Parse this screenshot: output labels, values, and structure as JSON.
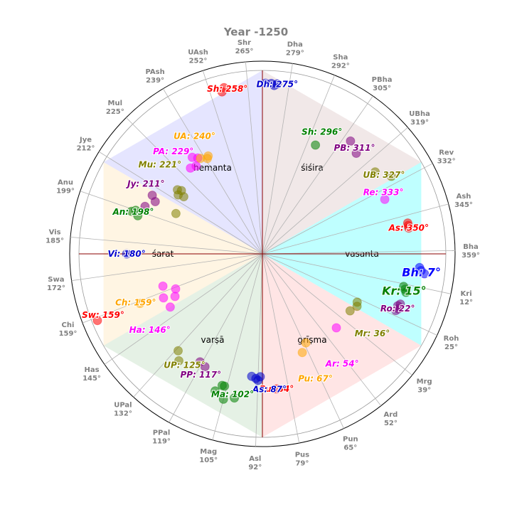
{
  "chart_data": {
    "type": "scatter",
    "subtype": "polar",
    "title": "Year -1250",
    "angular_unit": "degrees",
    "direction": "clockwise",
    "zero_direction": "east",
    "nakshatras": [
      {
        "name": "Bha",
        "deg": 359
      },
      {
        "name": "Kri",
        "deg": 12
      },
      {
        "name": "Roh",
        "deg": 25
      },
      {
        "name": "Mrg",
        "deg": 39
      },
      {
        "name": "Ard",
        "deg": 52
      },
      {
        "name": "Pun",
        "deg": 65
      },
      {
        "name": "Pus",
        "deg": 79
      },
      {
        "name": "Asl",
        "deg": 92
      },
      {
        "name": "Mag",
        "deg": 105
      },
      {
        "name": "PPal",
        "deg": 119
      },
      {
        "name": "UPal",
        "deg": 132
      },
      {
        "name": "Has",
        "deg": 145
      },
      {
        "name": "Chi",
        "deg": 159
      },
      {
        "name": "Swa",
        "deg": 172
      },
      {
        "name": "Vis",
        "deg": 185
      },
      {
        "name": "Anu",
        "deg": 199
      },
      {
        "name": "Jye",
        "deg": 212
      },
      {
        "name": "Mul",
        "deg": 225
      },
      {
        "name": "PAsh",
        "deg": 239
      },
      {
        "name": "UAsh",
        "deg": 252
      },
      {
        "name": "Shr",
        "deg": 265
      },
      {
        "name": "Dha",
        "deg": 279
      },
      {
        "name": "Sha",
        "deg": 292
      },
      {
        "name": "PBha",
        "deg": 305
      },
      {
        "name": "UBha",
        "deg": 319
      },
      {
        "name": "Rev",
        "deg": 332
      },
      {
        "name": "Ash",
        "deg": 345
      }
    ],
    "seasons": [
      {
        "name": "vasanta",
        "from": -30,
        "to": 30,
        "color": "#00ffff"
      },
      {
        "name": "grīṣma",
        "from": 30,
        "to": 90,
        "color": "#ff9999"
      },
      {
        "name": "varṣā",
        "from": 90,
        "to": 150,
        "color": "#99c799"
      },
      {
        "name": "śarat",
        "from": 150,
        "to": 210,
        "color": "#ffd68f"
      },
      {
        "name": "hemanta",
        "from": 210,
        "to": 270,
        "color": "#9999ff"
      },
      {
        "name": "śiśira",
        "from": 270,
        "to": 330,
        "color": "#c9a3a3"
      }
    ],
    "reference_lines": [
      0,
      90,
      180,
      270
    ],
    "series": [
      {
        "label": "Bh",
        "value": 7,
        "text": "Bh: 7°",
        "color": "#0000ff",
        "points": [
          {
            "deg": 5,
            "r": 0.86
          },
          {
            "deg": 6,
            "r": 0.87
          },
          {
            "deg": 7,
            "r": 0.89
          }
        ]
      },
      {
        "label": "Kr",
        "value": 15,
        "text": "Kr: 15°",
        "color": "#008000",
        "points": [
          {
            "deg": 13,
            "r": 0.79
          },
          {
            "deg": 14,
            "r": 0.8
          },
          {
            "deg": 15,
            "r": 0.81
          }
        ]
      },
      {
        "label": "Ro",
        "value": 22,
        "text": "Ro: 22°",
        "color": "#800080",
        "points": [
          {
            "deg": 20,
            "r": 0.8
          },
          {
            "deg": 21,
            "r": 0.79
          },
          {
            "deg": 22,
            "r": 0.8
          },
          {
            "deg": 23,
            "r": 0.79
          }
        ]
      },
      {
        "label": "Mr",
        "value": 36,
        "text": "Mr: 36°",
        "color": "#808000",
        "points": [
          {
            "deg": 27,
            "r": 0.58
          },
          {
            "deg": 29,
            "r": 0.59
          },
          {
            "deg": 33,
            "r": 0.57
          }
        ]
      },
      {
        "label": "Ar",
        "value": 54,
        "text": "Ar: 54°",
        "color": "#ff00ff",
        "points": [
          {
            "deg": 45,
            "r": 0.57
          }
        ]
      },
      {
        "label": "Pu",
        "value": 67,
        "text": "Pu: 67°",
        "color": "#ffa500",
        "points": [
          {
            "deg": 64,
            "r": 0.54
          },
          {
            "deg": 68,
            "r": 0.58
          }
        ]
      },
      {
        "label": "Pu",
        "value": 84,
        "text": "Pu: 84°",
        "color": "#ff0000",
        "points": [
          {
            "deg": 84,
            "r": 0.74
          }
        ]
      },
      {
        "label": "As",
        "value": 87,
        "text": "As: 87°",
        "color": "#0000cc",
        "points": [
          {
            "deg": 91,
            "r": 0.67
          },
          {
            "deg": 93,
            "r": 0.68
          },
          {
            "deg": 95,
            "r": 0.67
          },
          {
            "deg": 92,
            "r": 0.69
          }
        ]
      },
      {
        "label": "Ma",
        "value": 102,
        "text": "Ma: 102°",
        "color": "#008000",
        "points": [
          {
            "deg": 101,
            "r": 0.8
          },
          {
            "deg": 105,
            "r": 0.82
          },
          {
            "deg": 107,
            "r": 0.75
          },
          {
            "deg": 109,
            "r": 0.79
          },
          {
            "deg": 106,
            "r": 0.75
          }
        ]
      },
      {
        "label": "PP",
        "value": 117,
        "text": "PP: 117°",
        "color": "#800080",
        "points": [
          {
            "deg": 117,
            "r": 0.69
          },
          {
            "deg": 120,
            "r": 0.68
          }
        ]
      },
      {
        "label": "UP",
        "value": 125,
        "text": "UP: 125°",
        "color": "#808000",
        "points": [
          {
            "deg": 128,
            "r": 0.74
          },
          {
            "deg": 131,
            "r": 0.7
          }
        ]
      },
      {
        "label": "Ha",
        "value": 146,
        "text": "Ha: 146°",
        "color": "#ff00ff",
        "points": [
          {
            "deg": 150,
            "r": 0.58
          },
          {
            "deg": 156,
            "r": 0.59
          },
          {
            "deg": 162,
            "r": 0.57
          },
          {
            "deg": 154,
            "r": 0.53
          },
          {
            "deg": 158,
            "r": 0.51
          }
        ]
      },
      {
        "label": "Ch",
        "value": 159,
        "text": "Ch: 159°",
        "color": "#ffa500",
        "points": [
          {
            "deg": 158,
            "r": 0.72
          }
        ]
      },
      {
        "label": "Sw",
        "value": 159,
        "text": "Sw: 159°",
        "color": "#ff0000",
        "points": [
          {
            "deg": 158,
            "r": 0.97
          }
        ]
      },
      {
        "label": "Vi",
        "value": 180,
        "text": "Vi: 180°",
        "color": "#0000cc",
        "points": [
          {
            "deg": 180,
            "r": 0.74
          }
        ]
      },
      {
        "label": "An",
        "value": 198,
        "text": "An: 198°",
        "color": "#008000",
        "points": [
          {
            "deg": 198,
            "r": 0.75
          },
          {
            "deg": 199,
            "r": 0.73
          },
          {
            "deg": 197,
            "r": 0.71
          }
        ]
      },
      {
        "label": "Jy",
        "value": 211,
        "text": "Jy: 211°",
        "color": "#800080",
        "points": [
          {
            "deg": 206,
            "r": 0.65
          },
          {
            "deg": 208,
            "r": 0.68
          },
          {
            "deg": 202,
            "r": 0.69
          }
        ]
      },
      {
        "label": "Mu",
        "value": 221,
        "text": "Mu: 221°",
        "color": "#808000",
        "points": [
          {
            "deg": 215,
            "r": 0.56
          },
          {
            "deg": 217,
            "r": 0.58
          },
          {
            "deg": 216,
            "r": 0.53
          },
          {
            "deg": 218,
            "r": 0.56
          },
          {
            "deg": 205,
            "r": 0.52
          }
        ]
      },
      {
        "label": "PA",
        "value": 229,
        "text": "PA: 229°",
        "color": "#ff00ff",
        "points": [
          {
            "deg": 230,
            "r": 0.61
          },
          {
            "deg": 233,
            "r": 0.6
          },
          {
            "deg": 234,
            "r": 0.65
          },
          {
            "deg": 236,
            "r": 0.63
          }
        ]
      },
      {
        "label": "UA",
        "value": 240,
        "text": "UA: 240°",
        "color": "#ffa500",
        "points": [
          {
            "deg": 237,
            "r": 0.62
          },
          {
            "deg": 240,
            "r": 0.6
          },
          {
            "deg": 241,
            "r": 0.61
          }
        ]
      },
      {
        "label": "Sh",
        "value": 258,
        "text": "Sh: 258°",
        "color": "#ff0000",
        "points": [
          {
            "deg": 256,
            "r": 0.91
          },
          {
            "deg": 257,
            "r": 0.93
          }
        ]
      },
      {
        "label": "Dh",
        "value": 275,
        "text": "Dh: 275°",
        "color": "#0000cc",
        "points": [
          {
            "deg": 271,
            "r": 0.93
          },
          {
            "deg": 273,
            "r": 0.93
          },
          {
            "deg": 275,
            "r": 0.93
          },
          {
            "deg": 274,
            "r": 0.92
          }
        ]
      },
      {
        "label": "Sh",
        "value": 296,
        "text": "Sh: 296°",
        "color": "#008000",
        "points": [
          {
            "deg": 296,
            "r": 0.66
          }
        ]
      },
      {
        "label": "PB",
        "value": 311,
        "text": "PB: 311°",
        "color": "#800080",
        "points": [
          {
            "deg": 308,
            "r": 0.78
          },
          {
            "deg": 313,
            "r": 0.75
          }
        ]
      },
      {
        "label": "UB",
        "value": 327,
        "text": "UB: 327°",
        "color": "#808000",
        "points": [
          {
            "deg": 324,
            "r": 0.76
          },
          {
            "deg": 329,
            "r": 0.82
          }
        ]
      },
      {
        "label": "Re",
        "value": 333,
        "text": "Re: 333°",
        "color": "#ff00ff",
        "points": [
          {
            "deg": 336,
            "r": 0.73
          }
        ]
      },
      {
        "label": "As",
        "value": 350,
        "text": "As: 350°",
        "color": "#ff0000",
        "points": [
          {
            "deg": 348,
            "r": 0.81
          },
          {
            "deg": 349,
            "r": 0.81
          },
          {
            "deg": 350,
            "r": 0.81
          }
        ]
      }
    ]
  }
}
